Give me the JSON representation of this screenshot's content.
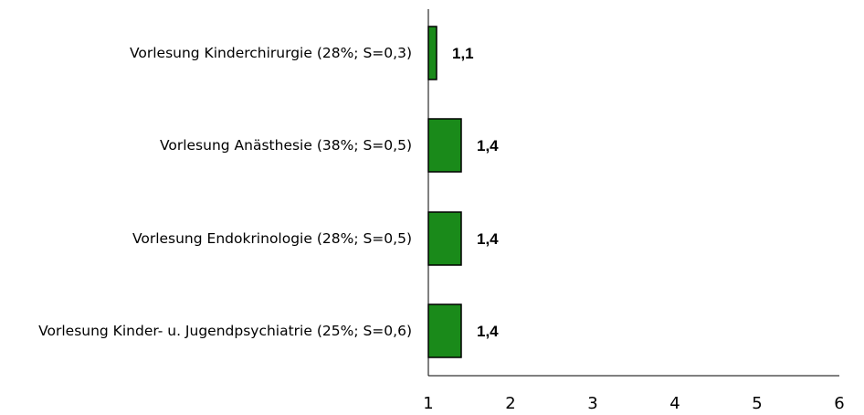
{
  "chart_data": {
    "type": "bar",
    "orientation": "horizontal",
    "categories": [
      "Vorlesung Kinderchirurgie (28%; S=0,3)",
      "Vorlesung Anästhesie (38%; S=0,5)",
      "Vorlesung Endokrinologie (28%; S=0,5)",
      "Vorlesung Kinder- u. Jugendpsychiatrie (25%; S=0,6)"
    ],
    "values": [
      1.1,
      1.4,
      1.4,
      1.4
    ],
    "value_labels": [
      "1,1",
      "1,4",
      "1,4",
      "1,4"
    ],
    "xlim": [
      1,
      6
    ],
    "xticks": [
      "1",
      "2",
      "3",
      "4",
      "5",
      "6"
    ],
    "title": "",
    "xlabel": "",
    "ylabel": "",
    "grid": false,
    "bar_color": "#1a8a1a",
    "bar_edge_color": "#000000"
  }
}
